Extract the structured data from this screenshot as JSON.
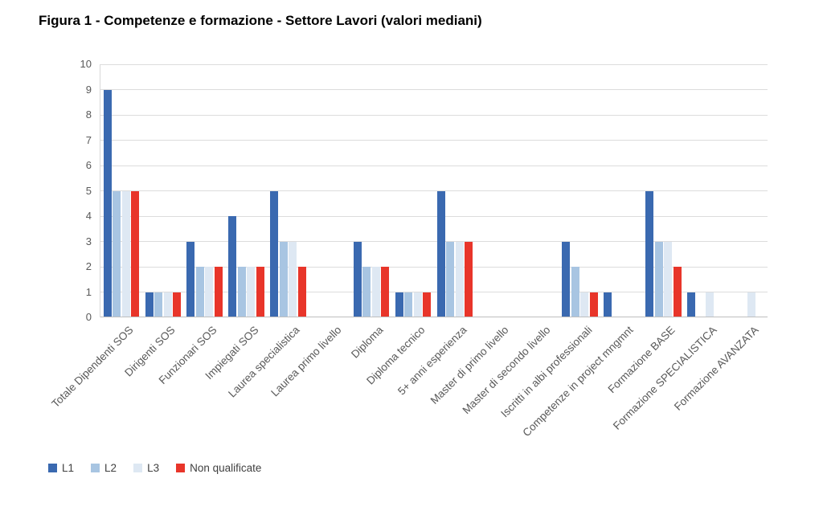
{
  "figure": {
    "title": "Figura 1 - Competenze e formazione - Settore Lavori (valori mediani)"
  },
  "chart_data": {
    "type": "bar",
    "title": "Figura 1 - Competenze e formazione - Settore Lavori (valori mediani)",
    "categories": [
      "Totale Dipendenti SOS",
      "Dirigenti SOS",
      "Funzionari SOS",
      "Impiegati SOS",
      "Laurea specialistica",
      "Laurea primo livello",
      "Diploma",
      "Diploma tecnico",
      "5+ anni esperienza",
      "Master di primo livello",
      "Master di secondo livello",
      "Iscritti in albi professionali",
      "Competenze in project mngmnt",
      "Formazione BASE",
      "Formazione SPECIALISTICA",
      "Formazione AVANZATA"
    ],
    "series": [
      {
        "name": "L1",
        "color": "#3A69B0",
        "values": [
          9,
          1,
          3,
          4,
          5,
          0,
          3,
          1,
          5,
          0,
          0,
          3,
          1,
          5,
          1,
          0
        ]
      },
      {
        "name": "L2",
        "color": "#A8C5E2",
        "values": [
          5,
          1,
          2,
          2,
          3,
          0,
          2,
          1,
          3,
          0,
          0,
          2,
          0,
          3,
          0,
          0
        ]
      },
      {
        "name": "L3",
        "color": "#DEE8F3",
        "values": [
          5,
          1,
          2,
          2,
          3,
          0,
          2,
          1,
          3,
          0,
          0,
          1,
          0,
          3,
          1,
          1
        ]
      },
      {
        "name": "Non qualificate",
        "color": "#E8352A",
        "values": [
          5,
          1,
          2,
          2,
          2,
          0,
          2,
          1,
          3,
          0,
          0,
          1,
          0,
          2,
          0,
          0
        ]
      }
    ],
    "xlabel": "",
    "ylabel": "",
    "ylim": [
      0,
      10
    ],
    "yticks": [
      0,
      1,
      2,
      3,
      4,
      5,
      6,
      7,
      8,
      9,
      10
    ],
    "grid": true,
    "legend_position": "bottom-left",
    "colors": {
      "gridline": "#DCDCDC",
      "axis_line": "#BFBFBF",
      "tick_text": "#595959",
      "legend_text": "#404040",
      "title_text": "#000000",
      "background": "#FFFFFF"
    }
  }
}
